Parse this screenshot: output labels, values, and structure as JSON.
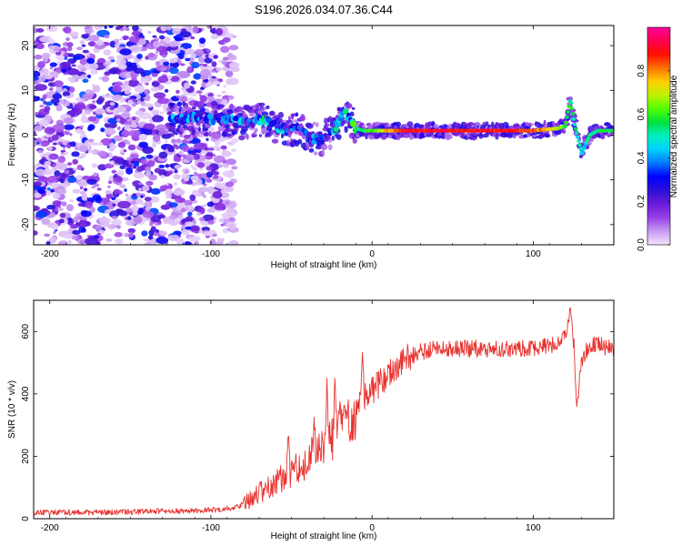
{
  "title": "S196.2026.034.07.36.C44",
  "chart_data": [
    {
      "type": "heatmap",
      "title": "S196.2026.034.07.36.C44",
      "xlabel": "Height of straight line (km)",
      "ylabel": "Frequency (Hz)",
      "xlim": [
        -210,
        150
      ],
      "ylim": [
        -24.5,
        24.5
      ],
      "x_ticks": [
        -200,
        -100,
        0,
        100
      ],
      "x_tick_labels": [
        "-200",
        "-100",
        "0",
        "100"
      ],
      "y_ticks": [
        -20,
        -10,
        0,
        10,
        20
      ],
      "y_tick_labels": [
        "-20",
        "-10",
        "0",
        "10",
        "20"
      ],
      "colorbar": {
        "label": "Normalized spectral amplitude",
        "range": [
          0,
          1
        ],
        "ticks": [
          0.0,
          0.2,
          0.4,
          0.6,
          0.8
        ],
        "tick_labels": [
          "0.0",
          "0.2",
          "0.4",
          "0.6",
          "0.8"
        ],
        "colors": [
          "#f2e4fc",
          "#c79af2",
          "#9a40e8",
          "#6a1ad8",
          "#2a10d8",
          "#0000ff",
          "#0078ff",
          "#00d0ff",
          "#00f0c0",
          "#00e040",
          "#50ff00",
          "#c0f000",
          "#ffd000",
          "#ff7000",
          "#ff1000",
          "#ff0050",
          "#ff00a0"
        ]
      },
      "ridge": {
        "x": [
          -125,
          -110,
          -95,
          -85,
          -75,
          -68,
          -60,
          -52,
          -45,
          -38,
          -32,
          -26,
          -22,
          -18,
          -14,
          -10,
          -5,
          0,
          20,
          60,
          100,
          115,
          120,
          123,
          126,
          130,
          135,
          140,
          150
        ],
        "freq": [
          3.5,
          3.8,
          3.5,
          3.0,
          2.8,
          3.5,
          2.0,
          1.0,
          1.5,
          -0.5,
          -1.0,
          0.5,
          2.0,
          5.0,
          4.0,
          1.5,
          1.0,
          1.0,
          1.0,
          1.0,
          1.0,
          1.5,
          2.0,
          8.0,
          2.0,
          -4.0,
          0.0,
          1.0,
          1.0
        ],
        "amplitude": [
          0.3,
          0.3,
          0.3,
          0.35,
          0.3,
          0.45,
          0.3,
          0.3,
          0.25,
          0.3,
          0.25,
          0.3,
          0.4,
          0.35,
          0.4,
          0.5,
          0.55,
          0.6,
          0.9,
          0.9,
          0.85,
          0.7,
          0.6,
          0.55,
          0.5,
          0.45,
          0.5,
          0.55,
          0.55
        ]
      },
      "noise_region_x": [
        -210,
        -85
      ],
      "noise_freq_range": [
        -24.5,
        24.5
      ]
    },
    {
      "type": "line",
      "xlabel": "Height of straight line (km)",
      "ylabel": "SNR (10 * v/v)",
      "xlim": [
        -210,
        150
      ],
      "ylim": [
        0,
        700
      ],
      "x_ticks": [
        -200,
        -100,
        0,
        100
      ],
      "x_tick_labels": [
        "-200",
        "-100",
        "0",
        "100"
      ],
      "y_ticks": [
        0,
        200,
        400,
        600
      ],
      "y_tick_labels": [
        "0",
        "200",
        "400",
        "600"
      ],
      "line_color": "#e8322f",
      "series": [
        {
          "name": "SNR",
          "x": [
            -210,
            -190,
            -170,
            -150,
            -130,
            -110,
            -100,
            -90,
            -82,
            -78,
            -70,
            -62,
            -56,
            -50,
            -44,
            -38,
            -32,
            -28,
            -24,
            -20,
            -16,
            -12,
            -8,
            -4,
            0,
            10,
            20,
            30,
            40,
            60,
            80,
            100,
            115,
            120,
            123,
            126,
            128,
            130,
            135,
            140,
            150
          ],
          "y": [
            20,
            20,
            20,
            22,
            24,
            25,
            28,
            32,
            40,
            55,
            80,
            110,
            130,
            150,
            170,
            195,
            220,
            240,
            255,
            270,
            300,
            330,
            360,
            390,
            410,
            460,
            510,
            535,
            545,
            545,
            545,
            545,
            560,
            600,
            650,
            530,
            400,
            500,
            560,
            560,
            540
          ]
        }
      ],
      "spikes": [
        {
          "x": -52,
          "y": 280
        },
        {
          "x": -36,
          "y": 330
        },
        {
          "x": -28,
          "y": 450
        },
        {
          "x": -23,
          "y": 470
        },
        {
          "x": -20,
          "y": 380
        },
        {
          "x": -16,
          "y": 360
        },
        {
          "x": -6,
          "y": 540
        },
        {
          "x": 123,
          "y": 680
        },
        {
          "x": 127,
          "y": 355
        }
      ]
    }
  ]
}
